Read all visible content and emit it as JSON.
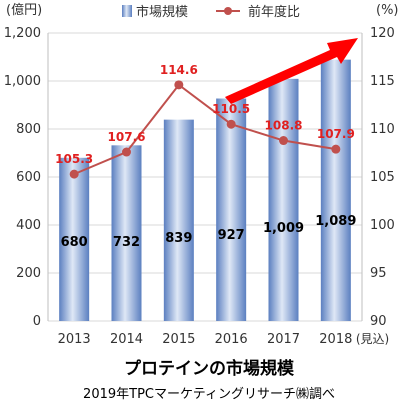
{
  "chart_data": {
    "type": "bar",
    "title": "プロテインの市場規模",
    "source": "2019年TPCマーケティングリサーチ㈱調べ",
    "left_unit": "(億円)",
    "right_unit": "(%)",
    "xlabel_suffix": "(見込)",
    "categories": [
      "2013",
      "2014",
      "2015",
      "2016",
      "2017",
      "2018"
    ],
    "bar_series": {
      "name": "市場規模",
      "values": [
        680,
        732,
        839,
        927,
        1009,
        1089
      ],
      "labels": [
        "680",
        "732",
        "839",
        "927",
        "1,009",
        "1,089"
      ]
    },
    "line_series": {
      "name": "前年度比",
      "values": [
        105.3,
        107.6,
        114.6,
        110.5,
        108.8,
        107.9
      ],
      "labels": [
        "105.3",
        "107.6",
        "114.6",
        "110.5",
        "108.8",
        "107.9"
      ]
    },
    "y_left": {
      "min": 0,
      "max": 1200,
      "step": 200,
      "ticks": [
        "0",
        "200",
        "400",
        "600",
        "800",
        "1,000",
        "1,200"
      ]
    },
    "y_right": {
      "min": 90,
      "max": 120,
      "step": 5,
      "ticks": [
        "90",
        "95",
        "100",
        "105",
        "110",
        "115",
        "120"
      ]
    },
    "grid": true,
    "legend_position": "top",
    "colors": {
      "bar": "#5b7fc0",
      "bar_light": "#dfe8f6",
      "line": "#c0504d",
      "line_label": "#e02020",
      "arrow": "#ff0000",
      "grid": "#d9d9d9"
    }
  }
}
